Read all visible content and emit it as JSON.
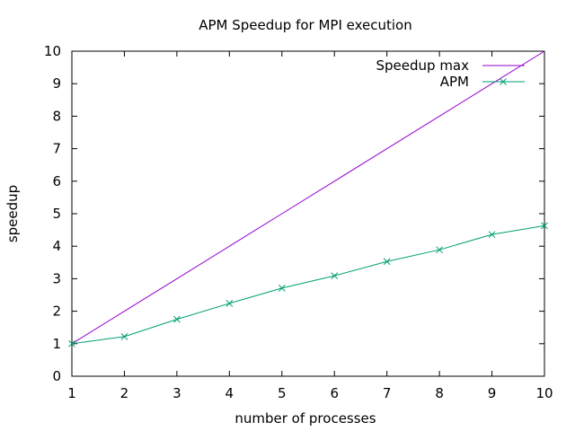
{
  "chart_data": {
    "type": "line",
    "title": "APM Speedup for MPI execution",
    "xlabel": "number of processes",
    "ylabel": "speedup",
    "xlim": [
      1,
      10
    ],
    "ylim": [
      0,
      10
    ],
    "x_ticks": [
      "1",
      "2",
      "3",
      "4",
      "5",
      "6",
      "7",
      "8",
      "9",
      "10"
    ],
    "y_ticks": [
      "0",
      "1",
      "2",
      "3",
      "4",
      "5",
      "6",
      "7",
      "8",
      "9",
      "10"
    ],
    "grid": false,
    "legend_position": "top-right",
    "series": [
      {
        "name": "Speedup max",
        "color": "#9400d3",
        "marker": "none",
        "x": [
          1,
          2,
          3,
          4,
          5,
          6,
          7,
          8,
          9,
          10
        ],
        "y": [
          1,
          2,
          3,
          4,
          5,
          6,
          7,
          8,
          9,
          10
        ]
      },
      {
        "name": "APM",
        "color": "#009e73",
        "marker": "x",
        "x": [
          1,
          2,
          3,
          4,
          5,
          6,
          7,
          8,
          9,
          10
        ],
        "y": [
          1.0,
          1.22,
          1.75,
          2.24,
          2.71,
          3.09,
          3.53,
          3.89,
          4.36,
          4.63
        ]
      }
    ]
  }
}
